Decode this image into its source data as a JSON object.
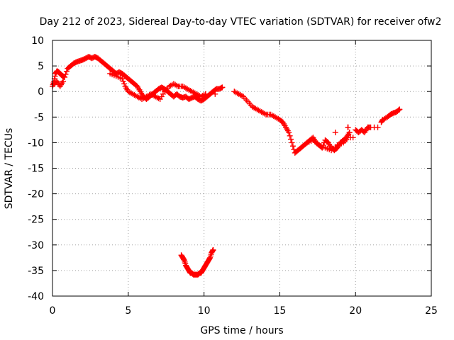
{
  "chart_data": {
    "type": "scatter",
    "title": "Day 212 of 2023, Sidereal Day-to-day VTEC variation (SDTVAR) for receiver ofw2",
    "xlabel": "GPS time / hours",
    "ylabel": "SDTVAR / TECUs",
    "xlim": [
      0,
      25
    ],
    "ylim": [
      -40,
      10
    ],
    "xticks": [
      0,
      5,
      10,
      15,
      20,
      25
    ],
    "yticks": [
      10,
      5,
      0,
      -5,
      -10,
      -15,
      -20,
      -25,
      -30,
      -35,
      -40
    ],
    "grid": true,
    "marker": "+",
    "color": "#ff0000",
    "series": [
      {
        "name": "SDTVAR",
        "x": [
          0.0,
          0.1,
          0.2,
          0.3,
          0.4,
          0.5,
          0.6,
          0.7,
          0.8,
          1.0,
          1.2,
          1.4,
          1.6,
          1.8,
          2.0,
          2.2,
          2.4,
          2.6,
          2.8,
          3.0,
          3.2,
          3.4,
          3.6,
          3.8,
          4.0,
          4.2,
          4.4,
          4.6,
          4.8,
          5.0,
          5.2,
          5.4,
          5.6,
          5.8,
          6.0,
          6.2,
          6.4,
          6.6,
          6.8,
          7.0,
          7.2,
          7.4,
          7.6,
          7.8,
          8.0,
          8.2,
          8.4,
          8.6,
          8.8,
          9.0,
          9.2,
          9.4,
          9.6,
          9.8,
          10.0,
          10.2,
          10.4,
          10.6,
          10.8,
          11.0,
          11.2,
          0.1,
          0.3,
          0.5,
          0.7,
          3.8,
          4.2,
          4.6,
          4.8,
          5.0,
          5.3,
          5.6,
          5.9,
          6.2,
          6.5,
          6.8,
          7.1,
          7.4,
          7.7,
          8.0,
          8.3,
          8.6,
          8.9,
          9.2,
          9.5,
          9.8,
          10.1,
          12.0,
          12.3,
          12.6,
          12.9,
          13.2,
          13.5,
          13.8,
          14.1,
          14.4,
          14.7,
          15.0,
          15.2,
          15.4,
          15.6,
          15.8,
          16.0,
          16.2,
          16.4,
          16.6,
          16.8,
          17.0,
          17.2,
          17.4,
          17.6,
          17.8,
          18.0,
          18.2,
          18.4,
          18.6,
          18.8,
          19.0,
          19.2,
          19.4,
          19.6,
          16.8,
          17.2,
          17.6,
          18.0,
          18.4,
          18.8,
          19.2,
          19.5,
          20.0,
          20.2,
          20.4,
          20.6,
          20.8,
          21.0,
          21.7,
          21.8,
          22.1,
          22.3,
          22.5,
          22.7,
          22.9,
          19.5,
          8.5,
          8.6,
          8.7,
          8.8,
          8.9,
          9.0,
          9.1,
          9.2,
          9.3,
          9.4,
          9.5,
          9.6,
          9.7,
          9.8,
          9.9,
          10.0,
          10.1,
          10.2,
          10.3,
          10.4,
          10.5,
          10.6
        ],
        "y": [
          1.0,
          2.0,
          3.5,
          4.0,
          3.8,
          3.5,
          3.2,
          3.0,
          2.8,
          4.5,
          5.0,
          5.5,
          5.8,
          6.0,
          6.2,
          6.5,
          6.8,
          6.5,
          6.8,
          6.5,
          6.0,
          5.5,
          5.0,
          4.5,
          4.0,
          3.5,
          3.8,
          3.5,
          3.0,
          2.5,
          2.0,
          1.5,
          1.0,
          0.0,
          -1.0,
          -1.5,
          -1.0,
          -0.5,
          0.0,
          0.5,
          0.8,
          0.5,
          0.0,
          -0.5,
          -1.0,
          -0.5,
          -1.0,
          -1.2,
          -1.0,
          -1.5,
          -1.2,
          -1.0,
          -1.5,
          -1.8,
          -1.5,
          -1.0,
          -0.5,
          0.0,
          0.5,
          0.5,
          0.8,
          1.5,
          2.0,
          1.0,
          2.0,
          3.5,
          3.0,
          2.5,
          1.0,
          0.0,
          -0.5,
          -1.0,
          -1.5,
          -1.0,
          -0.5,
          -1.0,
          -1.5,
          0.0,
          1.0,
          1.5,
          1.0,
          1.0,
          0.5,
          0.0,
          -0.5,
          -1.0,
          -0.5,
          0.0,
          -0.5,
          -1.0,
          -2.0,
          -3.0,
          -3.5,
          -4.0,
          -4.5,
          -4.5,
          -5.0,
          -5.5,
          -6.0,
          -7.0,
          -8.0,
          -10.0,
          -12.0,
          -11.5,
          -11.0,
          -10.5,
          -10.0,
          -9.5,
          -9.0,
          -10.0,
          -10.5,
          -11.0,
          -9.5,
          -10.0,
          -11.0,
          -11.5,
          -11.0,
          -10.0,
          -9.5,
          -9.0,
          -8.0,
          -10.0,
          -9.5,
          -10.5,
          -11.0,
          -11.5,
          -10.5,
          -10.0,
          -9.0,
          -7.5,
          -8.0,
          -7.5,
          -8.0,
          -7.0,
          -7.0,
          -6.0,
          -5.5,
          -5.0,
          -4.5,
          -4.2,
          -4.0,
          -3.5,
          -7.0,
          -32.0,
          -32.5,
          -33.0,
          -34.0,
          -34.5,
          -35.0,
          -35.5,
          -35.5,
          -35.8,
          -35.8,
          -35.8,
          -35.8,
          -35.5,
          -35.5,
          -35.0,
          -34.5,
          -34.0,
          -33.5,
          -33.0,
          -32.5,
          -31.5,
          -31.0
        ]
      }
    ]
  }
}
